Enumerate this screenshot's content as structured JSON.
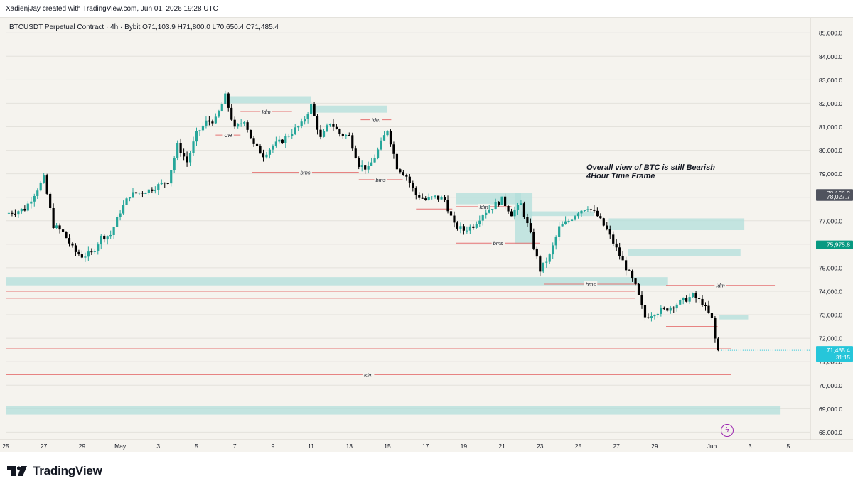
{
  "header": {
    "creator_line": "XadienjJay created with TradingView.com, Jun 01, 2026 19:28 UTC"
  },
  "symbol": {
    "name": "BTCUSDT Perpetual Contract · 4h · Bybit",
    "open": "O71,103.9",
    "high": "H71,800.0",
    "low": "L70,650.4",
    "close": "C71,485.4"
  },
  "annotation": {
    "line1": "Overall view of BTC is still Bearish",
    "line2": "4Hour Time Frame"
  },
  "brand": {
    "name": "TradingView"
  },
  "colors": {
    "up": "#26a69a",
    "down": "#000000",
    "zone": "#b2dfdb",
    "level": "#e57373",
    "bg": "#f5f3ee",
    "grid": "#e4e2dc",
    "current": "#26c6da"
  },
  "icons": {
    "flash": "flash-icon"
  },
  "chart_data": {
    "type": "candlestick",
    "ylim": [
      67800,
      85400
    ],
    "y_ticks": [
      68000,
      69000,
      70000,
      71000,
      72000,
      73000,
      74000,
      75000,
      76000,
      77000,
      78000,
      79000,
      80000,
      81000,
      82000,
      83000,
      84000,
      85000
    ],
    "y_tick_labels": [
      "68,000.0",
      "69,000.0",
      "70,000.0",
      "71,000.0",
      "72,000.0",
      "73,000.0",
      "74,000.0",
      "75,000.0",
      "76,000.0",
      "77,000.0",
      "78,000.0",
      "79,000.0",
      "80,000.0",
      "81,000.0",
      "82,000.0",
      "83,000.0",
      "84,000.0",
      "85,000.0"
    ],
    "x_ticks": [
      {
        "label": "25",
        "day": 0
      },
      {
        "label": "27",
        "day": 2
      },
      {
        "label": "29",
        "day": 4
      },
      {
        "label": "May",
        "day": 6
      },
      {
        "label": "3",
        "day": 8
      },
      {
        "label": "5",
        "day": 10
      },
      {
        "label": "7",
        "day": 12
      },
      {
        "label": "9",
        "day": 14
      },
      {
        "label": "11",
        "day": 16
      },
      {
        "label": "13",
        "day": 18
      },
      {
        "label": "15",
        "day": 20
      },
      {
        "label": "17",
        "day": 22
      },
      {
        "label": "19",
        "day": 24
      },
      {
        "label": "21",
        "day": 26
      },
      {
        "label": "23",
        "day": 28
      },
      {
        "label": "25",
        "day": 30
      },
      {
        "label": "27",
        "day": 32
      },
      {
        "label": "29",
        "day": 34
      },
      {
        "label": "Jun",
        "day": 37
      },
      {
        "label": "3",
        "day": 39
      },
      {
        "label": "5",
        "day": 41
      }
    ],
    "x_day_range": [
      0,
      42
    ],
    "price_labels": [
      {
        "value": 78166.2,
        "text": "78,166.2",
        "kind": "dark"
      },
      {
        "value": 78027.7,
        "text": "78,027.7",
        "kind": "dark"
      },
      {
        "value": 75975.8,
        "text": "75,975.8",
        "kind": "green"
      },
      {
        "value": 71485.4,
        "text": "71,485.4",
        "kind": "current",
        "sub": "31:15"
      }
    ],
    "zones": [
      {
        "d0": 11.6,
        "d1": 16.0,
        "p_low": 82000,
        "p_high": 82300
      },
      {
        "d0": 16.0,
        "d1": 20.0,
        "p_low": 81600,
        "p_high": 81900
      },
      {
        "d0": 23.6,
        "d1": 27.0,
        "p_low": 77700,
        "p_high": 78200
      },
      {
        "d0": 27.0,
        "d1": 30.8,
        "p_low": 77200,
        "p_high": 77400
      },
      {
        "d0": 31.6,
        "d1": 38.7,
        "p_low": 76600,
        "p_high": 77100
      },
      {
        "d0": 32.6,
        "d1": 38.5,
        "p_low": 75500,
        "p_high": 75800
      },
      {
        "d0": 0.0,
        "d1": 34.7,
        "p_low": 74250,
        "p_high": 74600
      },
      {
        "d0": 37.4,
        "d1": 38.9,
        "p_low": 72800,
        "p_high": 73000
      },
      {
        "d0": 0.0,
        "d1": 40.6,
        "p_low": 68750,
        "p_high": 69100
      },
      {
        "d0": 26.7,
        "d1": 27.6,
        "p_low": 76000,
        "p_high": 78200
      }
    ],
    "levels": [
      {
        "d0": 12.3,
        "d1": 15.0,
        "price": 81650,
        "label": "Idm"
      },
      {
        "d0": 11.0,
        "d1": 12.3,
        "price": 80650,
        "label": "CH"
      },
      {
        "d0": 12.9,
        "d1": 18.5,
        "price": 79060,
        "label": "bms"
      },
      {
        "d0": 18.5,
        "d1": 20.8,
        "price": 78750,
        "label": "bms"
      },
      {
        "d0": 18.6,
        "d1": 20.2,
        "price": 81300,
        "label": "Idm"
      },
      {
        "d0": 23.6,
        "d1": 26.5,
        "price": 77600,
        "label": "Idm"
      },
      {
        "d0": 23.6,
        "d1": 28.0,
        "price": 76050,
        "label": "bms"
      },
      {
        "d0": 28.2,
        "d1": 33.1,
        "price": 74300,
        "label": "bms"
      },
      {
        "d0": 34.6,
        "d1": 40.3,
        "price": 74250,
        "label": "Idm"
      },
      {
        "d0": 34.6,
        "d1": 37.3,
        "price": 72500,
        "label": ""
      },
      {
        "d0": 0.0,
        "d1": 38.0,
        "price": 70450,
        "label": "Idm"
      },
      {
        "d0": 0.0,
        "d1": 33.0,
        "price": 74000,
        "label": ""
      },
      {
        "d0": 0.0,
        "d1": 33.0,
        "price": 73700,
        "label": ""
      },
      {
        "d0": 0.0,
        "d1": 38.0,
        "price": 71550,
        "label": ""
      },
      {
        "d0": 21.5,
        "d1": 23.4,
        "price": 77500,
        "label": ""
      }
    ],
    "path": [
      [
        0,
        77300
      ],
      [
        1,
        77500
      ],
      [
        2,
        78800
      ],
      [
        2.5,
        76800
      ],
      [
        3,
        76500
      ],
      [
        3.6,
        75700
      ],
      [
        4,
        75500
      ],
      [
        4.5,
        75600
      ],
      [
        5,
        76300
      ],
      [
        5.5,
        76400
      ],
      [
        6,
        77400
      ],
      [
        6.5,
        78100
      ],
      [
        7,
        78200
      ],
      [
        7.5,
        78300
      ],
      [
        8,
        78500
      ],
      [
        8.5,
        78700
      ],
      [
        9,
        80200
      ],
      [
        9.5,
        79500
      ],
      [
        10,
        80700
      ],
      [
        10.5,
        81200
      ],
      [
        11,
        81300
      ],
      [
        11.5,
        82300
      ],
      [
        12,
        80900
      ],
      [
        12.5,
        81300
      ],
      [
        13,
        80200
      ],
      [
        13.5,
        79800
      ],
      [
        14,
        80200
      ],
      [
        14.5,
        80400
      ],
      [
        15,
        80800
      ],
      [
        15.5,
        81100
      ],
      [
        16,
        81900
      ],
      [
        16.5,
        80500
      ],
      [
        17,
        81200
      ],
      [
        17.5,
        80700
      ],
      [
        18,
        80600
      ],
      [
        18.5,
        79400
      ],
      [
        19,
        79200
      ],
      [
        19.5,
        80000
      ],
      [
        20,
        80900
      ],
      [
        20.5,
        79300
      ],
      [
        21,
        78900
      ],
      [
        21.5,
        78100
      ],
      [
        22,
        77900
      ],
      [
        22.5,
        78000
      ],
      [
        23,
        77900
      ],
      [
        23.5,
        76800
      ],
      [
        24,
        76600
      ],
      [
        24.5,
        76800
      ],
      [
        25,
        77300
      ],
      [
        25.5,
        77600
      ],
      [
        26,
        77900
      ],
      [
        26.5,
        77300
      ],
      [
        27,
        77700
      ],
      [
        27.5,
        76400
      ],
      [
        28,
        74900
      ],
      [
        28.5,
        75500
      ],
      [
        29,
        76700
      ],
      [
        29.5,
        77000
      ],
      [
        30,
        77400
      ],
      [
        30.5,
        77600
      ],
      [
        31,
        77200
      ],
      [
        31.5,
        76600
      ],
      [
        32,
        75800
      ],
      [
        32.5,
        75000
      ],
      [
        33,
        74200
      ],
      [
        33.5,
        72900
      ],
      [
        34,
        73100
      ],
      [
        34.5,
        73200
      ],
      [
        35,
        73400
      ],
      [
        35.5,
        73600
      ],
      [
        36,
        73800
      ],
      [
        36.5,
        73500
      ],
      [
        37,
        72800
      ],
      [
        37.2,
        71800
      ],
      [
        37.4,
        71485.4
      ]
    ]
  }
}
